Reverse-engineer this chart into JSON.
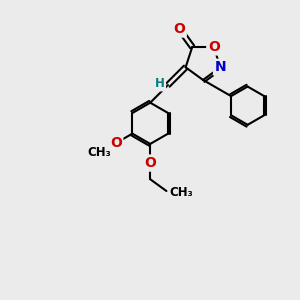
{
  "background_color": "#ebebeb",
  "atom_colors": {
    "C": "#000000",
    "N": "#0000cc",
    "O": "#cc0000",
    "H": "#008080"
  },
  "bond_color": "#000000",
  "bond_width": 1.5,
  "font_size_atom": 10,
  "font_size_small": 8.5
}
